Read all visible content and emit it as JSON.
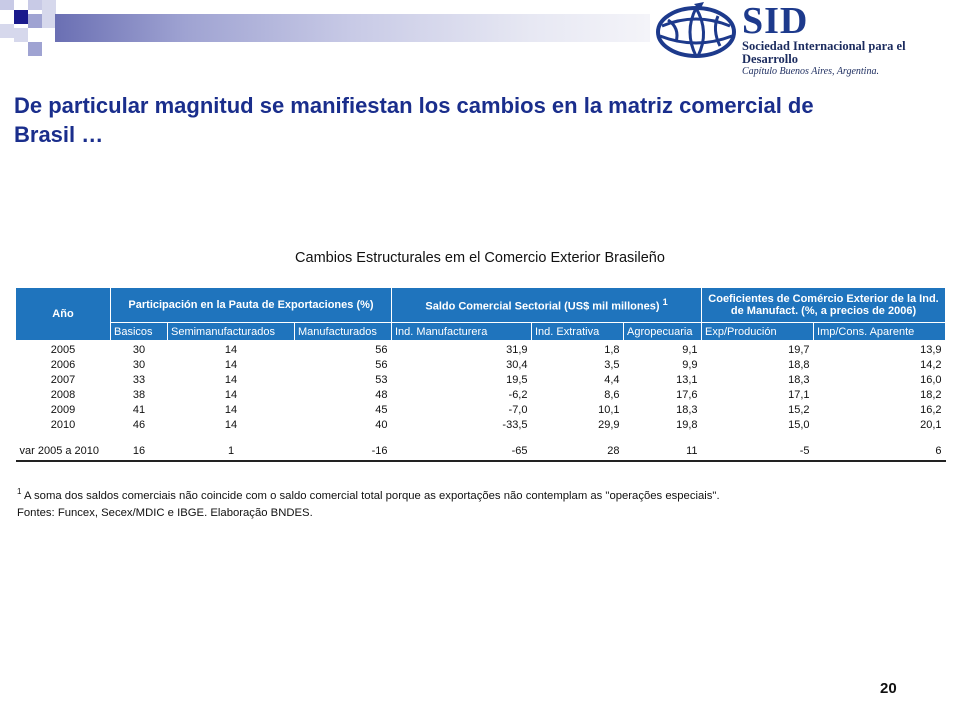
{
  "colors": {
    "heading": "#1a2e8c",
    "table_header": "#1f74bd",
    "logo": "#1d3a8c",
    "square_dark": "#1a1a8c",
    "square_light": "#9fa3d2"
  },
  "logo": {
    "icon": "globe-logo-icon",
    "name": "SID",
    "subtitle": "Sociedad Internacional para el Desarrollo",
    "chapter": "Capítulo Buenos Aires, Argentina."
  },
  "heading": "De particular magnitud se manifiestan los cambios en la matriz comercial de Brasil …",
  "table": {
    "title": "Cambios Estructurales em el Comercio Exterior Brasileño",
    "header_year": "Año",
    "group_1": "Participación en la Pauta de Exportaciones (%)",
    "group_2": "Saldo Comercial Sectorial (US$ mil millones)",
    "group_2_sup": "1",
    "group_3": "Coeficientes de Comércio Exterior de la Ind. de Manufact. (%, a precios de 2006)",
    "columns": [
      "Basicos",
      "Semimanufacturados",
      "Manufacturados",
      "Ind. Manufacturera",
      "Ind.  Extrativa",
      "Agropecuaria",
      "Exp/Produción",
      "Imp/Cons. Aparente"
    ],
    "rows": [
      [
        "2005",
        "30",
        "14",
        "56",
        "31,9",
        "1,8",
        "9,1",
        "19,7",
        "13,9"
      ],
      [
        "2006",
        "30",
        "14",
        "56",
        "30,4",
        "3,5",
        "9,9",
        "18,8",
        "14,2"
      ],
      [
        "2007",
        "33",
        "14",
        "53",
        "19,5",
        "4,4",
        "13,1",
        "18,3",
        "16,0"
      ],
      [
        "2008",
        "38",
        "14",
        "48",
        "-6,2",
        "8,6",
        "17,6",
        "17,1",
        "18,2"
      ],
      [
        "2009",
        "41",
        "14",
        "45",
        "-7,0",
        "10,1",
        "18,3",
        "15,2",
        "16,2"
      ],
      [
        "2010",
        "46",
        "14",
        "40",
        "-33,5",
        "29,9",
        "19,8",
        "15,0",
        "20,1"
      ]
    ],
    "var_row": [
      "var 2005 a 2010",
      "16",
      "1",
      "-16",
      "-65",
      "28",
      "11",
      "-5",
      "6"
    ]
  },
  "footnotes": {
    "note_marker": "1",
    "note_1": " A soma dos saldos comerciais não coincide com o saldo comercial total porque as exportações não contemplam as \"operações especiais\".",
    "sources": "Fontes: Funcex, Secex/MDIC e IBGE. Elaboração BNDES."
  },
  "page_number": "20"
}
